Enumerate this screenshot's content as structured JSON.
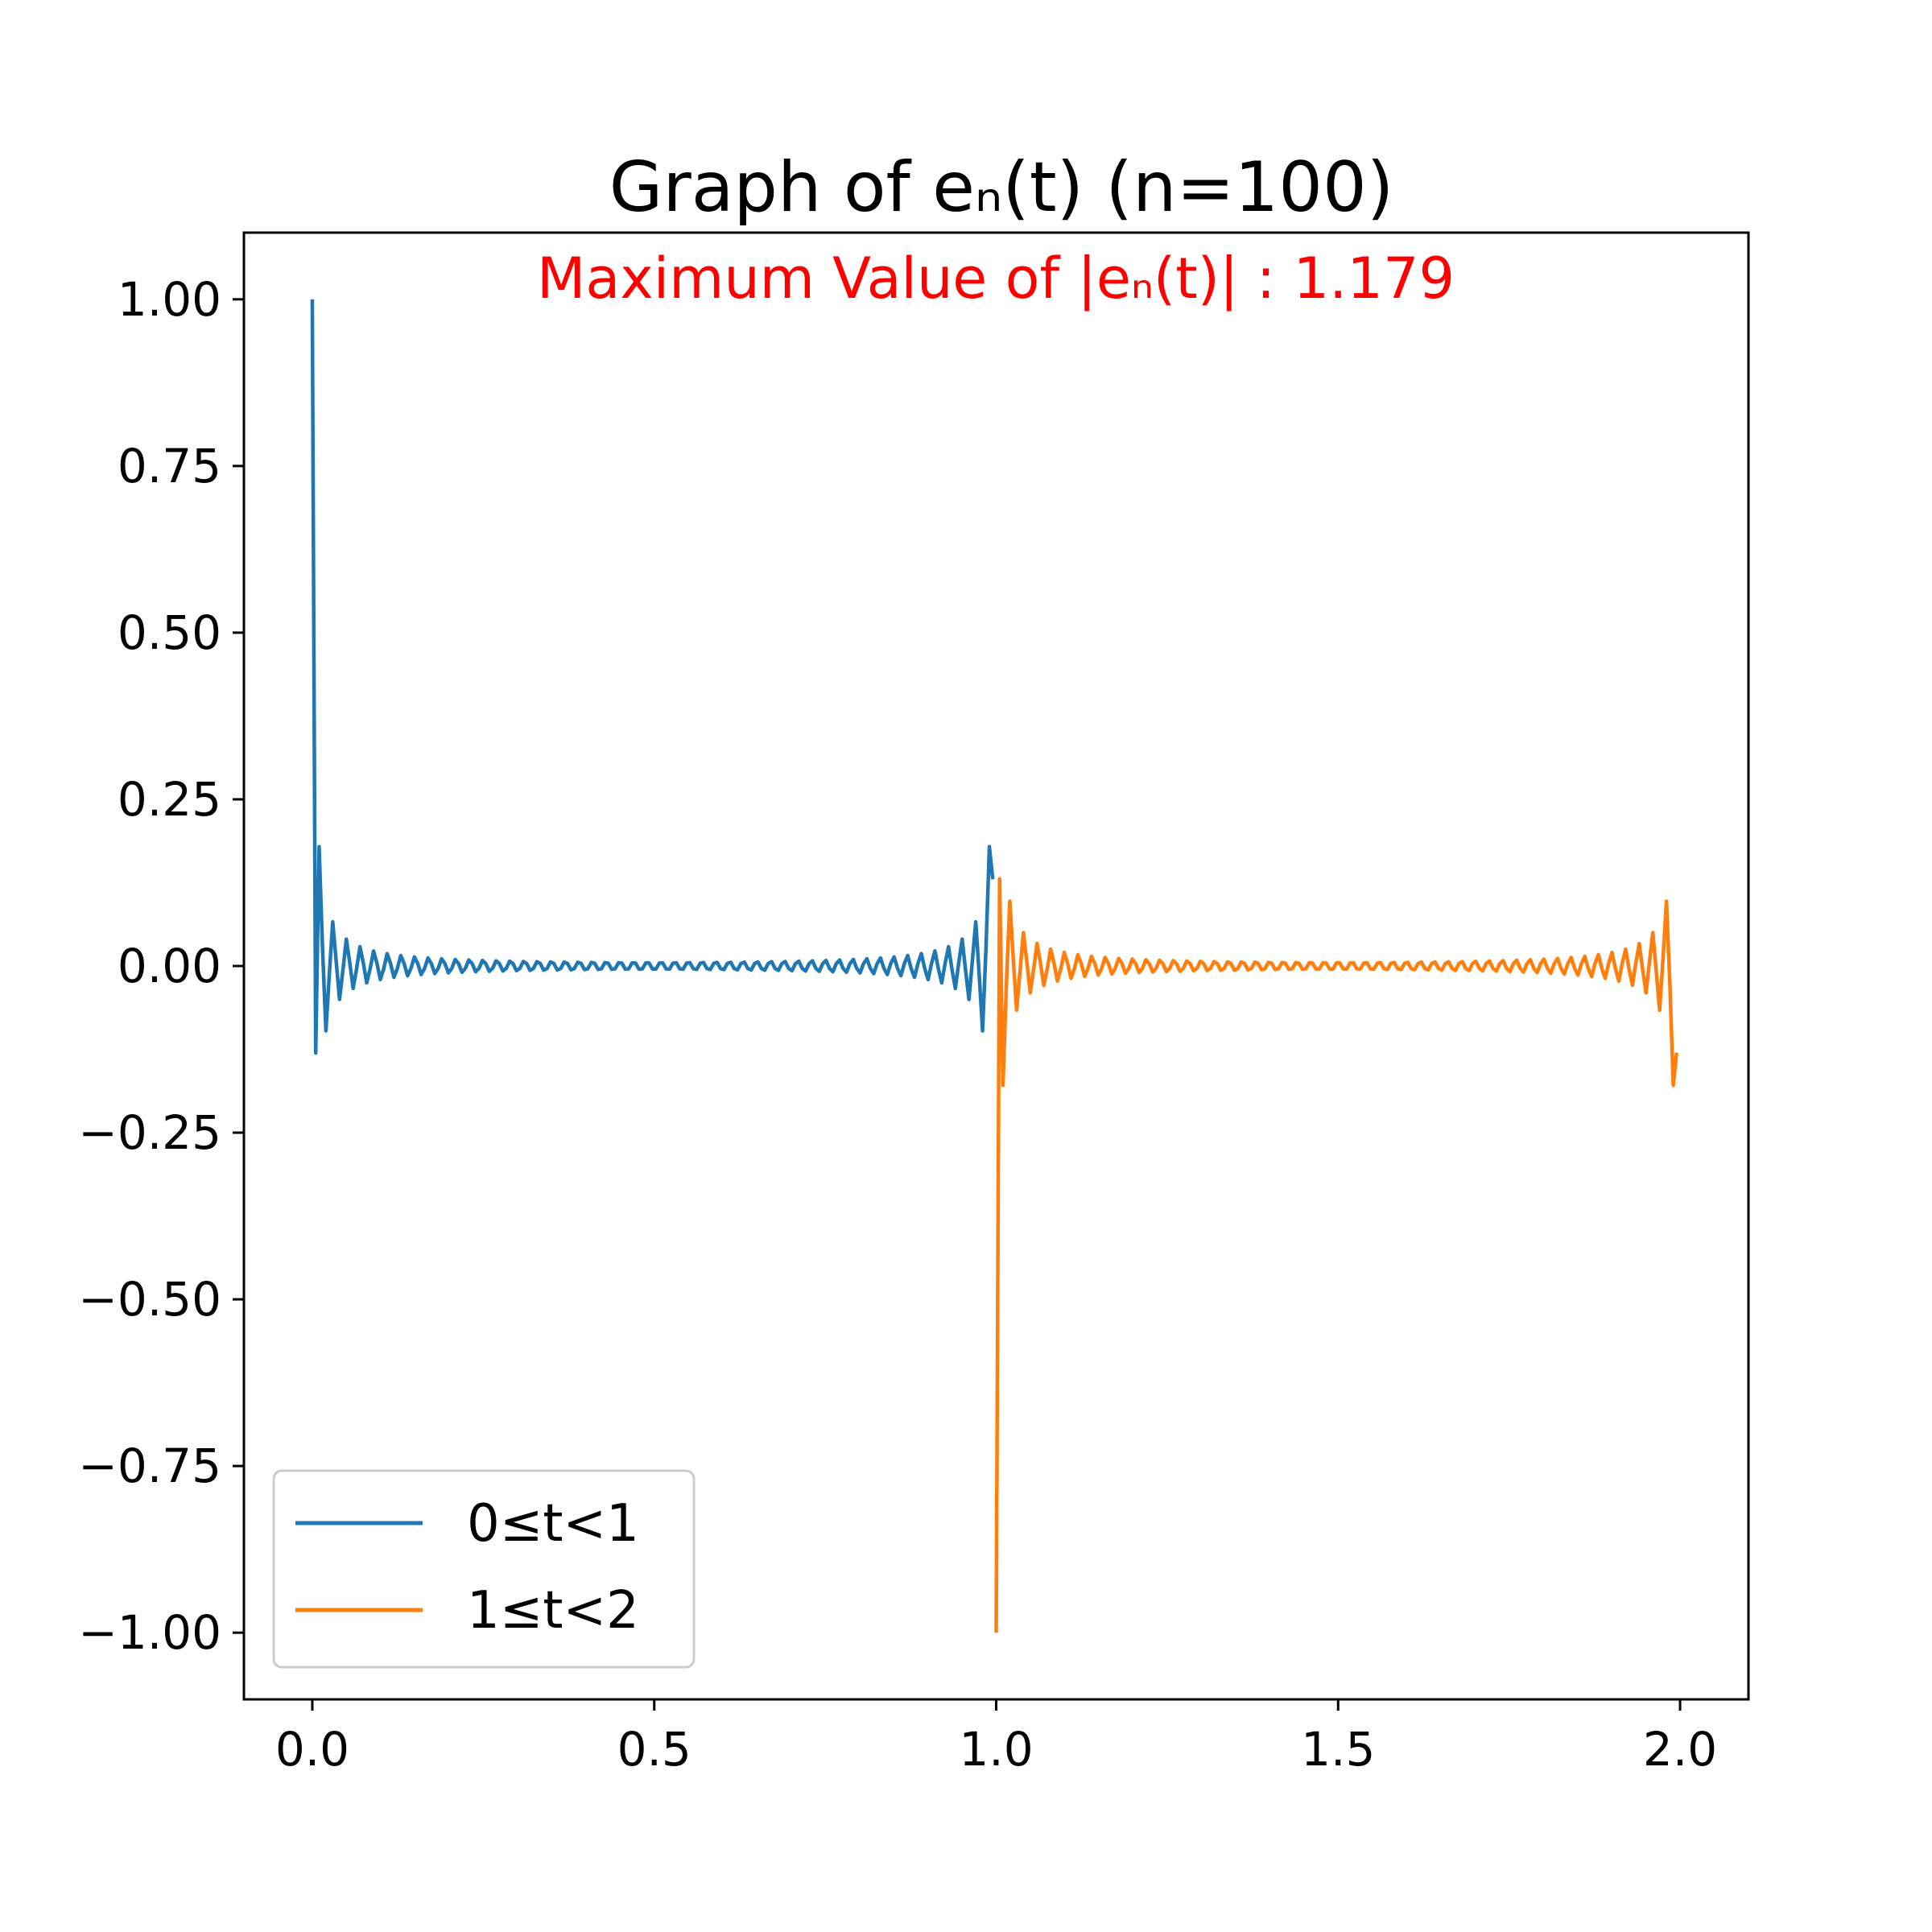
{
  "chart_data": {
    "type": "line",
    "title": "Graph of eₙ(t) (n=100)",
    "annotation": {
      "text": "Maximum Value of |eₙ(t)| : 1.179",
      "color": "#ff0000"
    },
    "xlim": [
      -0.1,
      2.1
    ],
    "ylim": [
      -1.1,
      1.1
    ],
    "xticks": [
      0.0,
      0.5,
      1.0,
      1.5,
      2.0
    ],
    "xtick_labels": [
      "0.0",
      "0.5",
      "1.0",
      "1.5",
      "2.0"
    ],
    "yticks": [
      1.0,
      0.75,
      0.5,
      0.25,
      0.0,
      -0.25,
      -0.5,
      -0.75,
      -1.0
    ],
    "ytick_labels": [
      "1.00",
      "0.75",
      "0.50",
      "0.25",
      "0.00",
      "−0.25",
      "−0.50",
      "−0.75",
      "−1.00"
    ],
    "grid": false,
    "legend_position": "lower-left",
    "n": 100,
    "max_abs_value": 1.179,
    "series": [
      {
        "name": "0≤t<1",
        "color": "#1f77b4",
        "t_range": [
          0.0,
          1.0
        ],
        "start_value": 1.0,
        "end_value": 0.13,
        "description_points": [
          [
            0.0,
            1.0
          ],
          [
            0.01,
            -0.179
          ],
          [
            0.02,
            0.1
          ],
          [
            0.98,
            0.1
          ],
          [
            0.99,
            -0.179
          ],
          [
            1.0,
            0.13
          ]
        ]
      },
      {
        "name": "1≤t<2",
        "color": "#ff7f0e",
        "t_range": [
          1.0,
          2.0
        ],
        "start_value": -1.0,
        "end_value": -0.13,
        "description_points": [
          [
            1.0,
            -1.0
          ],
          [
            1.01,
            0.179
          ],
          [
            1.02,
            -0.1
          ],
          [
            1.98,
            -0.1
          ],
          [
            1.99,
            0.179
          ],
          [
            2.0,
            -0.13
          ]
        ]
      }
    ]
  }
}
